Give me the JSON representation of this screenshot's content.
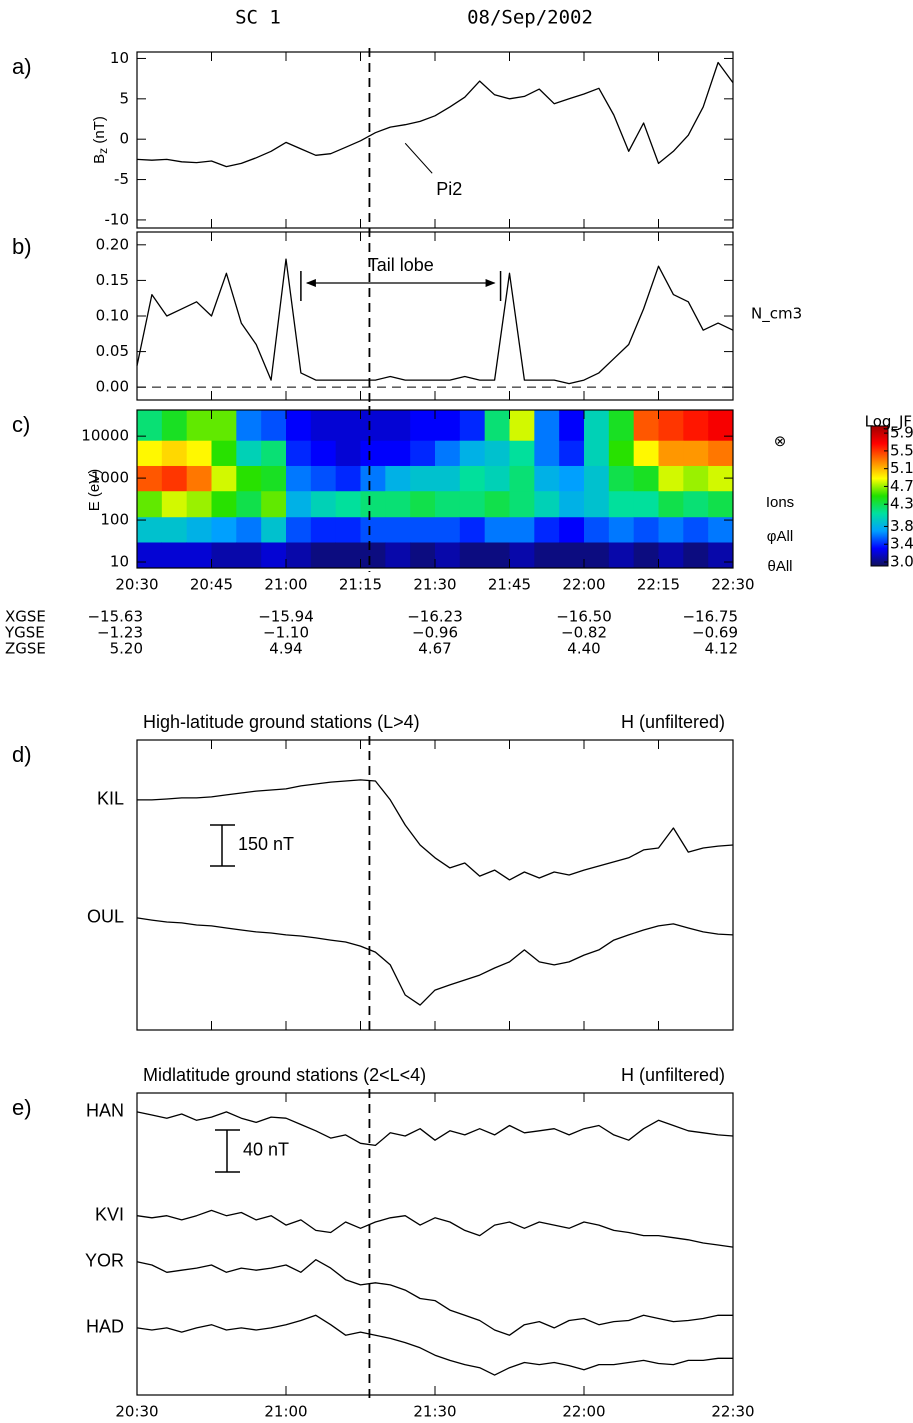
{
  "header": {
    "spacecraft": "SC 1",
    "date": "08/Sep/2002"
  },
  "chart_data": [
    {
      "type": "line",
      "panel_label": "a)",
      "ylabel": {
        "text": "B",
        "sub": "z",
        "unit": " (nT)"
      },
      "xlim": [
        20.5,
        22.5
      ],
      "ylim": [
        -11,
        10.8
      ],
      "xticks": [
        20.5,
        20.75,
        21.0,
        21.25,
        21.5,
        21.75,
        22.0,
        22.25,
        22.5
      ],
      "yticks": [
        -10,
        -5,
        0,
        5,
        10
      ],
      "vlines": [
        21.28
      ],
      "x": [
        20.5,
        20.55,
        20.6,
        20.65,
        20.7,
        20.75,
        20.8,
        20.85,
        20.9,
        20.95,
        21.0,
        21.05,
        21.1,
        21.15,
        21.2,
        21.25,
        21.3,
        21.35,
        21.4,
        21.45,
        21.5,
        21.55,
        21.6,
        21.65,
        21.7,
        21.75,
        21.8,
        21.85,
        21.9,
        21.95,
        22.0,
        22.05,
        22.1,
        22.15,
        22.2,
        22.25,
        22.3,
        22.35,
        22.4,
        22.45,
        22.5
      ],
      "series": [
        {
          "color": "#000000",
          "values": [
            -2.5,
            -2.6,
            -2.5,
            -2.8,
            -2.9,
            -2.7,
            -3.4,
            -3.0,
            -2.3,
            -1.5,
            -0.4,
            -1.2,
            -2.0,
            -1.8,
            -1.0,
            -0.2,
            0.8,
            1.5,
            1.8,
            2.2,
            2.9,
            4.0,
            5.2,
            7.2,
            5.5,
            5.0,
            5.3,
            6.2,
            4.4,
            5.0,
            5.6,
            6.3,
            3.0,
            -1.5,
            2.0,
            -3.0,
            -1.5,
            0.5,
            4.0,
            9.5,
            7.0
          ]
        }
      ],
      "annotations": [
        {
          "text": "Pi2",
          "x": 21.4,
          "y": -0.5
        }
      ]
    },
    {
      "type": "line",
      "panel_label": "b)",
      "right_label": "N_cm3",
      "xlim": [
        20.5,
        22.5
      ],
      "ylim": [
        -0.018,
        0.218
      ],
      "xticks": [
        20.5,
        20.75,
        21.0,
        21.25,
        21.5,
        21.75,
        22.0,
        22.25,
        22.5
      ],
      "yticks": [
        {
          "value": 0,
          "label": "0.00"
        },
        0.05,
        {
          "value": 0.1,
          "label": "0.10"
        },
        0.15,
        {
          "value": 0.2,
          "label": "0.20"
        }
      ],
      "vlines": [
        21.28
      ],
      "hlines": [
        0
      ],
      "x": [
        20.5,
        20.55,
        20.6,
        20.65,
        20.7,
        20.75,
        20.8,
        20.85,
        20.9,
        20.95,
        21.0,
        21.05,
        21.1,
        21.15,
        21.2,
        21.25,
        21.3,
        21.35,
        21.4,
        21.45,
        21.5,
        21.55,
        21.6,
        21.65,
        21.7,
        21.75,
        21.8,
        21.85,
        21.9,
        21.95,
        22.0,
        22.05,
        22.1,
        22.15,
        22.2,
        22.25,
        22.3,
        22.35,
        22.4,
        22.45,
        22.5
      ],
      "series": [
        {
          "color": "#000000",
          "values": [
            0.03,
            0.13,
            0.1,
            0.11,
            0.12,
            0.1,
            0.16,
            0.09,
            0.06,
            0.01,
            0.18,
            0.02,
            0.01,
            0.01,
            0.01,
            0.01,
            0.01,
            0.015,
            0.01,
            0.01,
            0.01,
            0.01,
            0.015,
            0.01,
            0.01,
            0.16,
            0.01,
            0.01,
            0.01,
            0.005,
            0.01,
            0.02,
            0.04,
            0.06,
            0.11,
            0.17,
            0.13,
            0.12,
            0.08,
            0.09,
            0.08
          ]
        }
      ],
      "annotations": [
        {
          "text": "Tail lobe",
          "span": [
            21.05,
            21.72
          ]
        }
      ]
    },
    {
      "type": "heatmap",
      "panel_label": "c)",
      "ylabel": {
        "text": "E (eV)"
      },
      "side_labels": [
        "⊗",
        "Ions",
        "φAll",
        "θAll"
      ],
      "xlim": [
        20.5,
        22.5
      ],
      "ylim": [
        7.2,
        42000
      ],
      "ylog": true,
      "xticks": [
        {
          "value": 20.5,
          "label": "20:30"
        },
        {
          "value": 20.75,
          "label": "20:45"
        },
        {
          "value": 21.0,
          "label": "21:00"
        },
        {
          "value": 21.25,
          "label": "21:15"
        },
        {
          "value": 21.5,
          "label": "21:30"
        },
        {
          "value": 21.75,
          "label": "21:45"
        },
        {
          "value": 22.0,
          "label": "22:00"
        },
        {
          "value": 22.25,
          "label": "22:15"
        },
        {
          "value": 22.5,
          "label": "22:30"
        }
      ],
      "yticks": [
        10,
        100,
        1000,
        10000
      ],
      "vlines": [
        21.28
      ],
      "x_bins": [
        20.5,
        20.5833,
        20.6667,
        20.75,
        20.8333,
        20.9167,
        21.0,
        21.0833,
        21.1667,
        21.25,
        21.3333,
        21.4167,
        21.5,
        21.5833,
        21.6667,
        21.75,
        21.8333,
        21.9167,
        22.0,
        22.0833,
        22.1667,
        22.25,
        22.3333,
        22.4167,
        22.5
      ],
      "y_bins": [
        7.2,
        30,
        120,
        500,
        2000,
        8000,
        42000
      ],
      "values": [
        [
          3.2,
          3.9,
          4.6,
          5.4,
          4.9,
          4.2
        ],
        [
          3.2,
          3.9,
          4.8,
          5.5,
          5.0,
          4.4
        ],
        [
          3.2,
          3.8,
          4.7,
          5.3,
          4.9,
          4.6
        ],
        [
          3.1,
          3.7,
          4.5,
          4.8,
          4.5,
          4.6
        ],
        [
          3.1,
          3.6,
          4.3,
          4.5,
          4.0,
          3.6
        ],
        [
          3.2,
          3.9,
          4.6,
          4.4,
          4.2,
          3.5
        ],
        [
          3.1,
          3.5,
          3.8,
          3.6,
          3.4,
          3.3
        ],
        [
          3.0,
          3.4,
          4.0,
          3.5,
          3.3,
          3.2
        ],
        [
          3.0,
          3.4,
          4.1,
          3.4,
          3.2,
          3.2
        ],
        [
          3.0,
          3.5,
          4.2,
          3.6,
          3.3,
          3.2
        ],
        [
          3.1,
          3.5,
          4.2,
          3.8,
          3.3,
          3.2
        ],
        [
          3.0,
          3.5,
          4.3,
          3.9,
          3.4,
          3.3
        ],
        [
          3.1,
          3.5,
          4.2,
          3.9,
          3.6,
          3.3
        ],
        [
          3.0,
          3.4,
          4.2,
          4.1,
          3.8,
          3.4
        ],
        [
          3.0,
          3.6,
          4.3,
          4.0,
          3.9,
          4.2
        ],
        [
          3.1,
          3.6,
          4.2,
          4.2,
          4.1,
          4.8
        ],
        [
          3.0,
          3.4,
          4.0,
          3.8,
          3.6,
          3.6
        ],
        [
          3.0,
          3.3,
          3.8,
          3.7,
          3.4,
          3.3
        ],
        [
          3.0,
          3.5,
          3.9,
          3.9,
          4.0,
          4.0
        ],
        [
          3.1,
          3.6,
          4.1,
          4.3,
          4.5,
          4.4
        ],
        [
          3.0,
          3.5,
          4.1,
          4.4,
          4.9,
          5.4
        ],
        [
          3.1,
          3.6,
          4.3,
          4.8,
          5.2,
          5.5
        ],
        [
          3.0,
          3.5,
          4.2,
          4.7,
          5.2,
          5.6
        ],
        [
          3.1,
          3.6,
          4.3,
          4.8,
          5.3,
          5.7
        ]
      ],
      "colorbar": {
        "label": "Log_JF",
        "zlim": [
          2.91,
          6.06
        ],
        "ticks": [
          5.9,
          5.5,
          5.1,
          4.7,
          4.3,
          3.8,
          3.4,
          {
            "value": 3,
            "label": "3.0"
          }
        ],
        "colormap": [
          "#10105a",
          "#0000ff",
          "#00a0ff",
          "#00e0a0",
          "#20e000",
          "#ffff00",
          "#ff8000",
          "#ff0000",
          "#a00000"
        ]
      },
      "ephemeris": {
        "x": [
          20.5,
          21.0,
          21.5,
          22.0,
          22.5
        ],
        "rows": [
          {
            "name": "XGSE",
            "values": [
              -15.63,
              -15.94,
              -16.23,
              -16.5,
              -16.75
            ],
            "value_labels": [
              "−15.63",
              "−15.94",
              "−16.23",
              "−16.50",
              "−16.75"
            ]
          },
          {
            "name": "YGSE",
            "values": [
              -1.23,
              -1.1,
              -0.96,
              -0.82,
              -0.69
            ],
            "value_labels": [
              "−1.23",
              "−1.10",
              "−0.96",
              "−0.82",
              "−0.69"
            ]
          },
          {
            "name": "ZGSE",
            "values": [
              5.2,
              4.94,
              4.67,
              4.4,
              4.12
            ],
            "value_labels": [
              "5.20",
              "4.94",
              "4.67",
              "4.40",
              "4.12"
            ]
          }
        ]
      }
    },
    {
      "type": "line",
      "panel_label": "d)",
      "title": "High-latitude ground stations (L>4)",
      "title_right": "H (unfiltered)",
      "xlim": [
        20.5,
        22.5
      ],
      "ylim": [
        0,
        1061
      ],
      "xticks": [
        20.5,
        20.75,
        21.0,
        21.25,
        21.5,
        21.75,
        22.0,
        22.25,
        22.5
      ],
      "vlines": [
        21.28
      ],
      "scalebar": {
        "value": 150,
        "label": "150 nT"
      },
      "x": [
        20.5,
        20.55,
        20.6,
        20.65,
        20.7,
        20.75,
        20.8,
        20.85,
        20.9,
        20.95,
        21.0,
        21.05,
        21.1,
        21.15,
        21.2,
        21.25,
        21.3,
        21.35,
        21.4,
        21.45,
        21.5,
        21.55,
        21.6,
        21.65,
        21.7,
        21.75,
        21.8,
        21.85,
        21.9,
        21.95,
        22.0,
        22.05,
        22.1,
        22.15,
        22.2,
        22.25,
        22.3,
        22.35,
        22.4,
        22.45,
        22.5
      ],
      "series": [
        {
          "name": "KIL",
          "color": "#000000",
          "values": [
            842,
            842,
            845,
            849,
            849,
            853,
            860,
            867,
            874,
            878,
            882,
            893,
            900,
            907,
            911,
            915,
            911,
            842,
            750,
            677,
            630,
            593,
            611,
            563,
            585,
            549,
            578,
            556,
            578,
            567,
            585,
            600,
            615,
            630,
            659,
            666,
            739,
            651,
            666,
            673,
            677
          ]
        },
        {
          "name": "OUL",
          "color": "#000000",
          "values": [
            410,
            402,
            395,
            392,
            384,
            381,
            373,
            366,
            359,
            355,
            348,
            344,
            337,
            329,
            322,
            307,
            285,
            238,
            128,
            91,
            146,
            165,
            183,
            201,
            227,
            249,
            293,
            249,
            238,
            249,
            274,
            293,
            329,
            348,
            366,
            381,
            388,
            373,
            359,
            351,
            348
          ]
        }
      ]
    },
    {
      "type": "line",
      "panel_label": "e)",
      "title": "Midlatitude ground stations (2<L<4)",
      "title_right": "H (unfiltered)",
      "xlim": [
        20.5,
        22.5
      ],
      "ylim": [
        0,
        288
      ],
      "xticks": [
        {
          "value": 20.5,
          "label": "20:30"
        },
        {
          "value": 21.0,
          "label": "21:00"
        },
        {
          "value": 21.5,
          "label": "21:30"
        },
        {
          "value": 22.0,
          "label": "22:00"
        },
        {
          "value": 22.5,
          "label": "22:30"
        }
      ],
      "vlines": [
        21.28
      ],
      "scalebar": {
        "value": 40,
        "label": "40 nT"
      },
      "x": [
        20.5,
        20.55,
        20.6,
        20.65,
        20.7,
        20.75,
        20.8,
        20.85,
        20.9,
        20.95,
        21.0,
        21.05,
        21.1,
        21.15,
        21.2,
        21.25,
        21.3,
        21.35,
        21.4,
        21.45,
        21.5,
        21.55,
        21.6,
        21.65,
        21.7,
        21.75,
        21.8,
        21.85,
        21.9,
        21.95,
        22.0,
        22.05,
        22.1,
        22.15,
        22.2,
        22.25,
        22.3,
        22.35,
        22.4,
        22.45,
        22.5
      ],
      "series": [
        {
          "name": "HAN",
          "color": "#000000",
          "values": [
            270,
            267,
            264,
            268,
            262,
            265,
            270,
            264,
            260,
            265,
            264,
            258,
            252,
            245,
            248,
            240,
            238,
            250,
            247,
            254,
            243,
            252,
            248,
            254,
            248,
            257,
            250,
            252,
            254,
            248,
            254,
            257,
            248,
            243,
            254,
            262,
            257,
            252,
            250,
            248,
            247
          ]
        },
        {
          "name": "KVI",
          "color": "#000000",
          "values": [
            171,
            169,
            171,
            167,
            171,
            176,
            171,
            174,
            167,
            171,
            162,
            167,
            157,
            155,
            165,
            159,
            165,
            169,
            171,
            162,
            169,
            165,
            157,
            152,
            162,
            165,
            159,
            165,
            162,
            159,
            165,
            162,
            157,
            155,
            152,
            152,
            150,
            148,
            145,
            143,
            141
          ]
        },
        {
          "name": "YOR",
          "color": "#000000",
          "values": [
            127,
            124,
            117,
            119,
            121,
            124,
            117,
            121,
            119,
            121,
            124,
            117,
            129,
            121,
            110,
            105,
            107,
            105,
            100,
            92,
            90,
            81,
            76,
            71,
            62,
            57,
            67,
            70,
            64,
            71,
            73,
            67,
            70,
            71,
            76,
            73,
            70,
            71,
            73,
            76,
            76
          ]
        },
        {
          "name": "HAD",
          "color": "#000000",
          "values": [
            64,
            62,
            64,
            60,
            64,
            67,
            62,
            64,
            62,
            64,
            67,
            71,
            76,
            67,
            57,
            60,
            57,
            54,
            50,
            45,
            38,
            33,
            29,
            26,
            19,
            26,
            31,
            29,
            31,
            28,
            24,
            29,
            29,
            31,
            33,
            30,
            29,
            33,
            33,
            35,
            35
          ]
        }
      ]
    }
  ]
}
